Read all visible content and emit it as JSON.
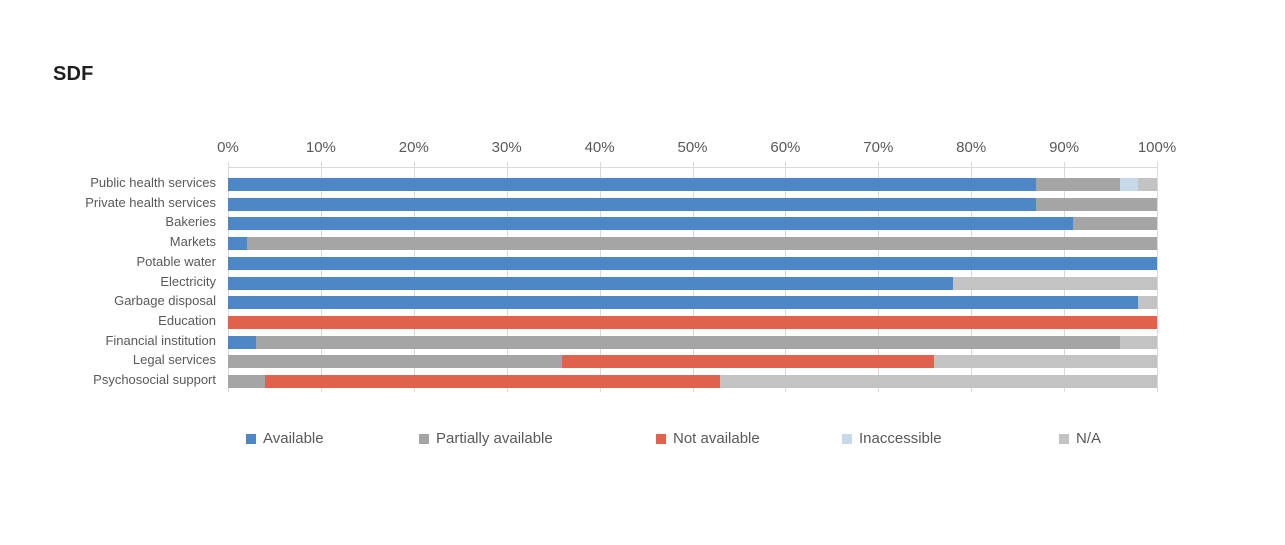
{
  "title": "SDF",
  "colors": {
    "available": "#4E87C5",
    "partially_available": "#A5A5A5",
    "not_available": "#E0624D",
    "inaccessible": "#C7D8EA",
    "na": "#C3C3C3",
    "gridline": "#D9D9D9",
    "axis_text": "#595959",
    "title_text": "#1F1F1F"
  },
  "chart_data": {
    "type": "bar",
    "orientation": "horizontal",
    "stacked": true,
    "title": "SDF",
    "xlabel": "",
    "ylabel": "",
    "x_axis": {
      "min": 0,
      "max": 100,
      "tick_labels": [
        "0%",
        "10%",
        "20%",
        "30%",
        "40%",
        "50%",
        "60%",
        "70%",
        "80%",
        "90%",
        "100%"
      ],
      "position": "top"
    },
    "grid": true,
    "legend_position": "bottom",
    "categories": [
      "Public health services",
      "Private health services",
      "Bakeries",
      "Markets",
      "Potable water",
      "Electricity",
      "Garbage disposal",
      "Education",
      "Financial institution",
      "Legal services",
      "Psychosocial support"
    ],
    "series": [
      {
        "name": "Available",
        "color": "#4E87C5",
        "values": [
          87,
          87,
          91,
          2,
          100,
          78,
          98,
          0,
          3,
          0,
          0
        ]
      },
      {
        "name": "Partially available",
        "color": "#A5A5A5",
        "values": [
          9,
          13,
          9,
          98,
          0,
          0,
          0,
          0,
          93,
          36,
          4
        ]
      },
      {
        "name": "Not available",
        "color": "#E0624D",
        "values": [
          0,
          0,
          0,
          0,
          0,
          0,
          0,
          100,
          0,
          40,
          49
        ]
      },
      {
        "name": "Inaccessible",
        "color": "#C7D8EA",
        "values": [
          2,
          0,
          0,
          0,
          0,
          0,
          0,
          0,
          0,
          0,
          0
        ]
      },
      {
        "name": "N/A",
        "color": "#C3C3C3",
        "values": [
          2,
          0,
          0,
          0,
          0,
          22,
          2,
          0,
          4,
          24,
          47
        ]
      }
    ]
  }
}
